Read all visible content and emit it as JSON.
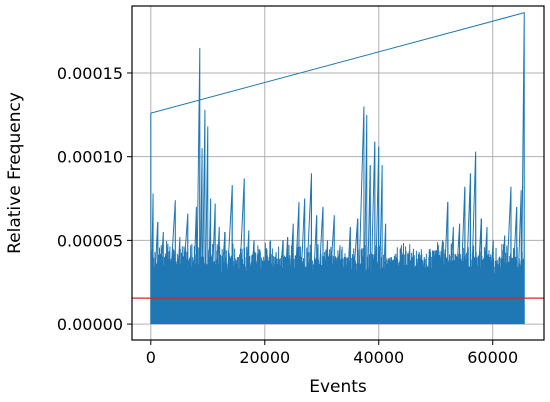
{
  "chart_data": {
    "type": "line",
    "title": "",
    "xlabel": "Events",
    "ylabel": "Relative Frequency",
    "xlim": [
      -3300,
      69000
    ],
    "ylim": [
      -9.5e-06,
      0.00019
    ],
    "grid": true,
    "x_ticks": [
      0,
      20000,
      40000,
      60000
    ],
    "x_tick_labels": [
      "0",
      "20000",
      "40000",
      "60000"
    ],
    "y_ticks": [
      0.0,
      5e-05,
      0.0001,
      0.00015
    ],
    "y_tick_labels": [
      "0.00000",
      "0.00005",
      "0.00010",
      "0.00015"
    ],
    "series": [
      {
        "color": "#1f77b4",
        "x_range": [
          0,
          65535
        ],
        "baseline_max": 3e-05,
        "spikes": [
          [
            0,
            0.000126
          ],
          [
            400,
            7.8e-05
          ],
          [
            1200,
            6.1e-05
          ],
          [
            2200,
            5.5e-05
          ],
          [
            3000,
            4.8e-05
          ],
          [
            4300,
            7.4e-05
          ],
          [
            5100,
            5.2e-05
          ],
          [
            6500,
            6.6e-05
          ],
          [
            7300,
            4e-05
          ],
          [
            8000,
            7e-05
          ],
          [
            8600,
            0.000165
          ],
          [
            9000,
            0.000105
          ],
          [
            9500,
            0.000128
          ],
          [
            10000,
            0.000118
          ],
          [
            10500,
            7.5e-05
          ],
          [
            11300,
            7.2e-05
          ],
          [
            12000,
            5.8e-05
          ],
          [
            13000,
            5.5e-05
          ],
          [
            14300,
            8.3e-05
          ],
          [
            15200,
            4e-05
          ],
          [
            16400,
            8.7e-05
          ],
          [
            17200,
            5.6e-05
          ],
          [
            18100,
            5e-05
          ],
          [
            19200,
            4.3e-05
          ],
          [
            20200,
            4.5e-05
          ],
          [
            21000,
            5e-05
          ],
          [
            22000,
            4.3e-05
          ],
          [
            23200,
            5e-05
          ],
          [
            24000,
            5.2e-05
          ],
          [
            25000,
            6e-05
          ],
          [
            26000,
            7.3e-05
          ],
          [
            27000,
            7.5e-05
          ],
          [
            28200,
            9e-05
          ],
          [
            29100,
            6.5e-05
          ],
          [
            30200,
            7e-05
          ],
          [
            31000,
            5e-05
          ],
          [
            32200,
            6.5e-05
          ],
          [
            33200,
            4.7e-05
          ],
          [
            34200,
            4e-05
          ],
          [
            35000,
            5.8e-05
          ],
          [
            36300,
            6.3e-05
          ],
          [
            37400,
            0.00013
          ],
          [
            37900,
            0.000125
          ],
          [
            38500,
            9.5e-05
          ],
          [
            39300,
            0.000109
          ],
          [
            40000,
            0.000106
          ],
          [
            40600,
            9.5e-05
          ],
          [
            41200,
            6e-05
          ],
          [
            42200,
            4e-05
          ],
          [
            43100,
            4e-05
          ],
          [
            44200,
            3.6e-05
          ],
          [
            45200,
            3e-05
          ],
          [
            46100,
            4.5e-05
          ],
          [
            47100,
            4.3e-05
          ],
          [
            48000,
            4e-05
          ],
          [
            49000,
            4.5e-05
          ],
          [
            50000,
            4.4e-05
          ],
          [
            51200,
            5e-05
          ],
          [
            52100,
            7.3e-05
          ],
          [
            53100,
            5.8e-05
          ],
          [
            54200,
            6e-05
          ],
          [
            55100,
            8.2e-05
          ],
          [
            56100,
            9e-05
          ],
          [
            57000,
            0.000103
          ],
          [
            58000,
            6.3e-05
          ],
          [
            59000,
            5.8e-05
          ],
          [
            60100,
            5e-05
          ],
          [
            61200,
            4e-05
          ],
          [
            62100,
            5.3e-05
          ],
          [
            63200,
            8.2e-05
          ],
          [
            64200,
            7e-05
          ],
          [
            65000,
            8e-05
          ],
          [
            65535,
            0.000186
          ]
        ]
      }
    ],
    "reference_line": {
      "y": 1.55e-05,
      "color": "#d62728"
    }
  }
}
